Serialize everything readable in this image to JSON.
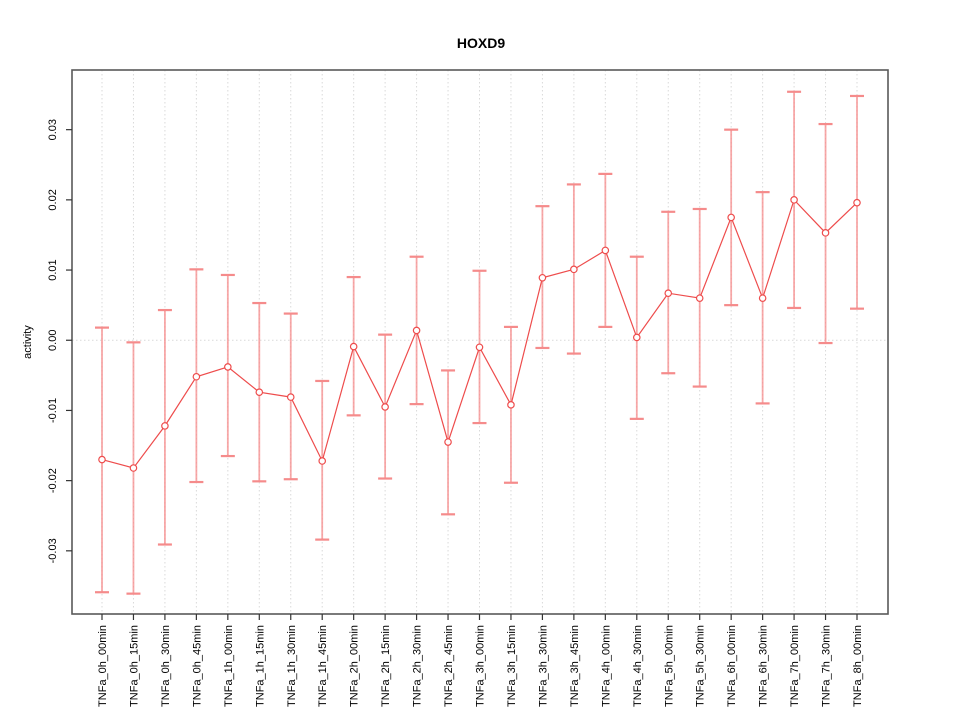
{
  "chart_data": {
    "type": "line",
    "title": "HOXD9",
    "xlabel": "",
    "ylabel": "activity",
    "legend": null,
    "grid": "vertical-dotted-plus-zero-line",
    "point_style": "open-circle",
    "error_bars": true,
    "ylim": [
      -0.039,
      0.0385
    ],
    "yticks": [
      -0.03,
      -0.02,
      -0.01,
      0.0,
      0.01,
      0.02,
      0.03
    ],
    "ytick_labels": [
      "-0.03",
      "-0.02",
      "-0.01",
      "0.00",
      "0.01",
      "0.02",
      "0.03"
    ],
    "categories": [
      "TNFa_0h_00min",
      "TNFa_0h_15min",
      "TNFa_0h_30min",
      "TNFa_0h_45min",
      "TNFa_1h_00min",
      "TNFa_1h_15min",
      "TNFa_1h_30min",
      "TNFa_1h_45min",
      "TNFa_2h_00min",
      "TNFa_2h_15min",
      "TNFa_2h_30min",
      "TNFa_2h_45min",
      "TNFa_3h_00min",
      "TNFa_3h_15min",
      "TNFa_3h_30min",
      "TNFa_3h_45min",
      "TNFa_4h_00min",
      "TNFa_4h_30min",
      "TNFa_5h_00min",
      "TNFa_5h_30min",
      "TNFa_6h_00min",
      "TNFa_6h_30min",
      "TNFa_7h_00min",
      "TNFa_7h_30min",
      "TNFa_8h_00min"
    ],
    "series": [
      {
        "name": "activity",
        "values": [
          -0.017,
          -0.0182,
          -0.0122,
          -0.0052,
          -0.0038,
          -0.0074,
          -0.0081,
          -0.0172,
          -0.0009,
          -0.0095,
          0.0014,
          -0.0145,
          -0.001,
          -0.0092,
          0.0089,
          0.0101,
          0.0128,
          0.0004,
          0.0067,
          0.006,
          0.0175,
          0.006,
          0.02,
          0.0153,
          0.0196
        ],
        "err_high": [
          0.0018,
          -0.0003,
          0.0043,
          0.0101,
          0.0093,
          0.0053,
          0.0038,
          -0.0058,
          0.009,
          0.0008,
          0.0119,
          -0.0043,
          0.0099,
          0.0019,
          0.0191,
          0.0222,
          0.0237,
          0.0119,
          0.0183,
          0.0187,
          0.03,
          0.0211,
          0.0354,
          0.0308,
          0.0348
        ],
        "err_low": [
          -0.0359,
          -0.0361,
          -0.0291,
          -0.0202,
          -0.0165,
          -0.0201,
          -0.0198,
          -0.0284,
          -0.0107,
          -0.0197,
          -0.0091,
          -0.0248,
          -0.0118,
          -0.0203,
          -0.0011,
          -0.0019,
          0.0019,
          -0.0112,
          -0.0047,
          -0.0066,
          0.005,
          -0.009,
          0.0046,
          -0.0004,
          0.0045
        ]
      }
    ],
    "colors": {
      "line": "#ee4c4c",
      "point_stroke": "#ee4c4c",
      "point_fill": "#ffffff",
      "error_bar": "#f58b8b",
      "gridline": "#d9d9d9",
      "frame": "#595959",
      "tick": "#333333",
      "text": "#000000",
      "background": "#ffffff"
    }
  }
}
